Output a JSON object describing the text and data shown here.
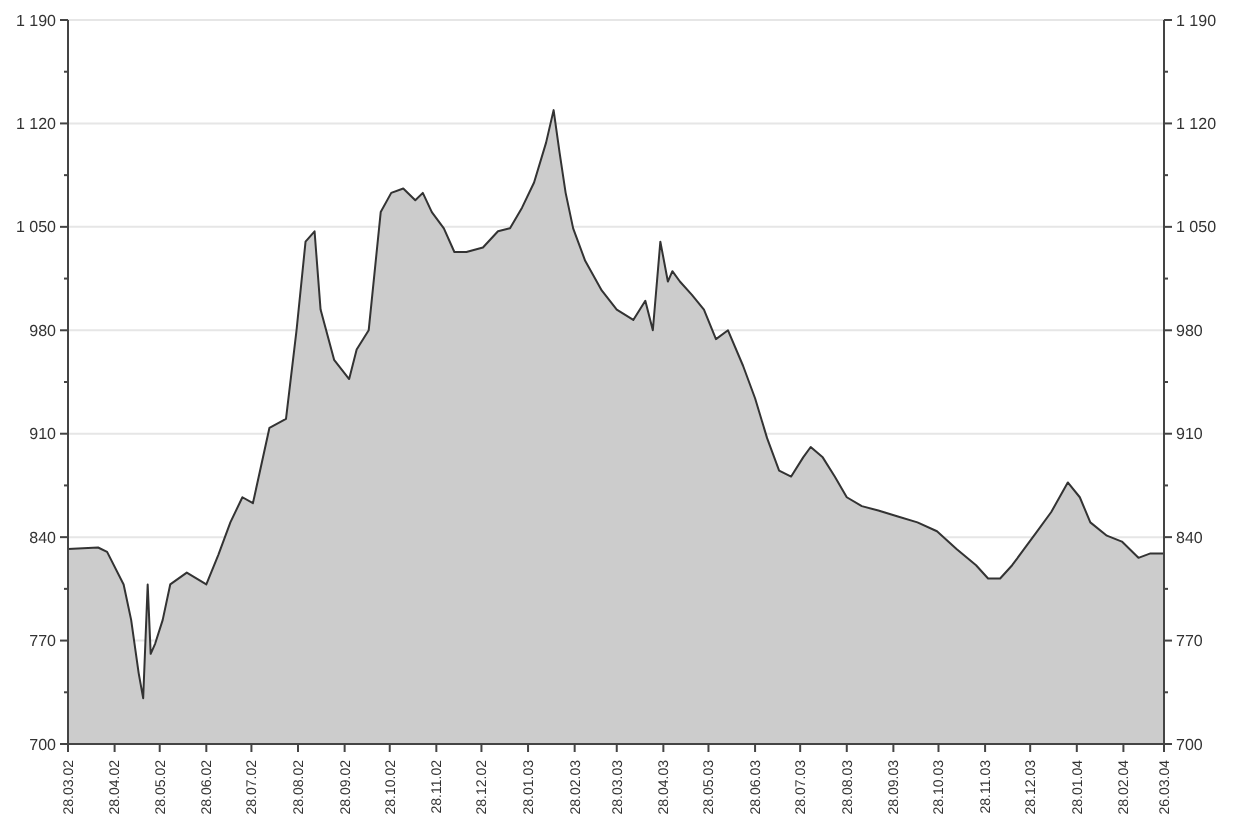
{
  "chart_data": {
    "type": "area",
    "x": [
      "2002-03-28",
      "2002-04-17",
      "2002-04-23",
      "2002-05-04",
      "2002-05-09",
      "2002-05-14",
      "2002-05-17",
      "2002-05-20",
      "2002-05-22",
      "2002-05-25",
      "2002-05-30",
      "2002-06-04",
      "2002-06-15",
      "2002-06-28",
      "2002-07-06",
      "2002-07-14",
      "2002-07-22",
      "2002-07-29",
      "2002-08-09",
      "2002-08-20",
      "2002-08-27",
      "2002-09-02",
      "2002-09-08",
      "2002-09-12",
      "2002-09-21",
      "2002-10-01",
      "2002-10-06",
      "2002-10-14",
      "2002-10-22",
      "2002-10-29",
      "2002-11-06",
      "2002-11-14",
      "2002-11-19",
      "2002-11-25",
      "2002-12-03",
      "2002-12-10",
      "2002-12-18",
      "2002-12-29",
      "2003-01-08",
      "2003-01-16",
      "2003-01-24",
      "2003-02-01",
      "2003-02-09",
      "2003-02-14",
      "2003-02-18",
      "2003-02-22",
      "2003-02-27",
      "2003-03-07",
      "2003-03-18",
      "2003-03-28",
      "2003-04-08",
      "2003-04-16",
      "2003-04-21",
      "2003-04-26",
      "2003-05-01",
      "2003-05-04",
      "2003-05-09",
      "2003-05-17",
      "2003-05-25",
      "2003-06-02",
      "2003-06-10",
      "2003-06-20",
      "2003-06-28",
      "2003-07-06",
      "2003-07-14",
      "2003-07-22",
      "2003-07-30",
      "2003-08-04",
      "2003-08-12",
      "2003-08-20",
      "2003-08-28",
      "2003-09-07",
      "2003-09-18",
      "2003-10-01",
      "2003-10-14",
      "2003-10-27",
      "2003-11-09",
      "2003-11-22",
      "2003-11-30",
      "2003-12-08",
      "2003-12-16",
      "2003-12-24",
      "2004-01-01",
      "2004-01-11",
      "2004-01-22",
      "2004-01-30",
      "2004-02-06",
      "2004-02-17",
      "2004-02-27",
      "2004-03-09",
      "2004-03-17",
      "2004-03-26"
    ],
    "series": [
      {
        "color": "#cccccc",
        "values": [
          832,
          833,
          830,
          808,
          784,
          748,
          731,
          808,
          761,
          768,
          784,
          808,
          816,
          808,
          828,
          850,
          867,
          863,
          914,
          920,
          980,
          1040,
          1047,
          994,
          960,
          947,
          967,
          980,
          1060,
          1073,
          1076,
          1068,
          1073,
          1060,
          1049,
          1033,
          1033,
          1036,
          1047,
          1049,
          1063,
          1080,
          1107,
          1129,
          1100,
          1073,
          1049,
          1027,
          1007,
          994,
          987,
          1000,
          980,
          1040,
          1013,
          1020,
          1013,
          1004,
          994,
          974,
          980,
          956,
          934,
          907,
          885,
          881,
          894,
          901,
          894,
          881,
          867,
          861,
          858,
          854,
          850,
          844,
          832,
          821,
          812,
          812,
          821,
          832,
          843,
          857,
          877,
          867,
          850,
          841,
          837,
          826,
          829,
          829
        ]
      }
    ],
    "ylim": [
      700,
      1190
    ],
    "yticks": [
      700,
      {
        "value": 735,
        "label": null
      },
      770,
      {
        "value": 805,
        "label": null
      },
      840,
      {
        "value": 875,
        "label": null
      },
      910,
      {
        "value": 945,
        "label": null
      },
      980,
      {
        "value": 1015,
        "label": null
      },
      {
        "value": 1050,
        "label": "1 050"
      },
      {
        "value": 1085,
        "label": null
      },
      {
        "value": 1120,
        "label": "1 120"
      },
      {
        "value": 1155,
        "label": null
      },
      {
        "value": 1190,
        "label": "1 190"
      }
    ],
    "y2lim": [
      700,
      1190
    ],
    "y2ticks": [
      700,
      {
        "value": 735,
        "label": null
      },
      770,
      {
        "value": 805,
        "label": null
      },
      840,
      {
        "value": 875,
        "label": null
      },
      910,
      {
        "value": 945,
        "label": null
      },
      980,
      {
        "value": 1015,
        "label": null
      },
      {
        "value": 1050,
        "label": "1 050"
      },
      {
        "value": 1085,
        "label": null
      },
      {
        "value": 1120,
        "label": "1 120"
      },
      {
        "value": 1155,
        "label": null
      },
      {
        "value": 1190,
        "label": "1 190"
      }
    ],
    "xlim": [
      "2002-03-28",
      "2004-03-26"
    ],
    "xticks": [
      {
        "value": "2002-03-28",
        "label": "28.03.02"
      },
      {
        "value": "2002-04-28",
        "label": "28.04.02"
      },
      {
        "value": "2002-05-28",
        "label": "28.05.02"
      },
      {
        "value": "2002-06-28",
        "label": "28.06.02"
      },
      {
        "value": "2002-07-28",
        "label": "28.07.02"
      },
      {
        "value": "2002-08-28",
        "label": "28.08.02"
      },
      {
        "value": "2002-09-28",
        "label": "28.09.02"
      },
      {
        "value": "2002-10-28",
        "label": "28.10.02"
      },
      {
        "value": "2002-11-28",
        "label": "28.11.02"
      },
      {
        "value": "2002-12-28",
        "label": "28.12.02"
      },
      {
        "value": "2003-01-28",
        "label": "28.01.03"
      },
      {
        "value": "2003-02-28",
        "label": "28.02.03"
      },
      {
        "value": "2003-03-28",
        "label": "28.03.03"
      },
      {
        "value": "2003-04-28",
        "label": "28.04.03"
      },
      {
        "value": "2003-05-28",
        "label": "28.05.03"
      },
      {
        "value": "2003-06-28",
        "label": "28.06.03"
      },
      {
        "value": "2003-07-28",
        "label": "28.07.03"
      },
      {
        "value": "2003-08-28",
        "label": "28.08.03"
      },
      {
        "value": "2003-09-28",
        "label": "28.09.03"
      },
      {
        "value": "2003-10-28",
        "label": "28.10.03"
      },
      {
        "value": "2003-11-28",
        "label": "28.11.03"
      },
      {
        "value": "2003-12-28",
        "label": "28.12.03"
      },
      {
        "value": "2004-01-28",
        "label": "28.01.04"
      },
      {
        "value": "2004-02-28",
        "label": "28.02.04"
      },
      {
        "value": "2004-03-26",
        "label": "26.03.04"
      }
    ],
    "grid": "y"
  }
}
